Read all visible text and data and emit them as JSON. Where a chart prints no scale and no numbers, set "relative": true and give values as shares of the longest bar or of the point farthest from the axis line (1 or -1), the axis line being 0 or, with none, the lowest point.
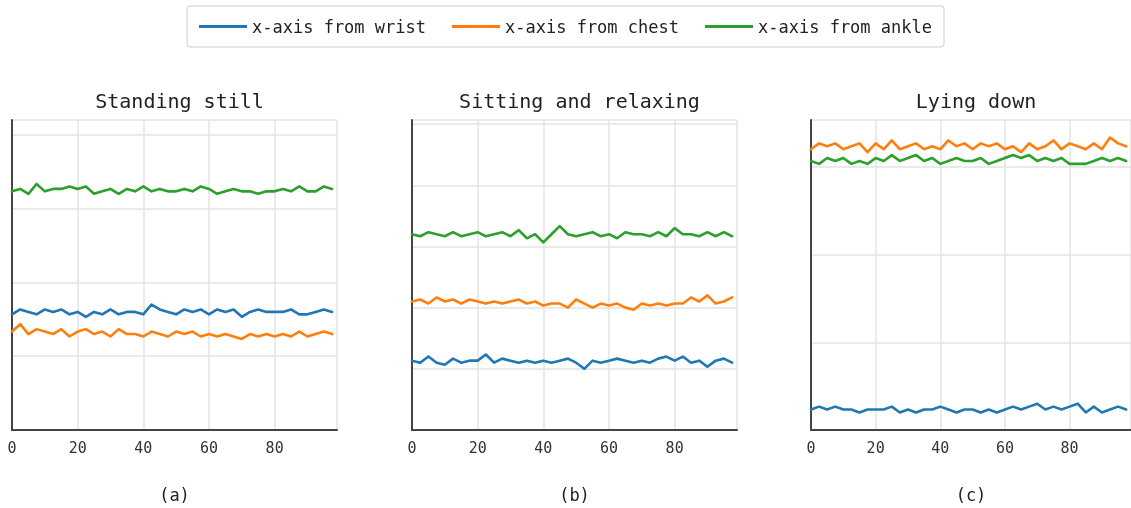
{
  "chart_data": [
    {
      "type": "line",
      "title": "Standing still",
      "xlabel": "(a)",
      "relative": true,
      "grid": true,
      "legend": "top",
      "tick_labels": "x",
      "xlim": [
        0,
        99
      ],
      "xticks": [
        0,
        20,
        40,
        60,
        80
      ],
      "x": [
        0,
        2.5,
        5,
        7.5,
        10,
        12.5,
        15,
        17.5,
        20,
        22.5,
        25,
        27.5,
        30,
        32.5,
        35,
        37.5,
        40,
        42.5,
        45,
        47.5,
        50,
        52.5,
        55,
        57.5,
        60,
        62.5,
        65,
        67.5,
        70,
        72.5,
        75,
        77.5,
        80,
        82.5,
        85,
        87.5,
        90,
        92.5,
        95,
        97.5
      ],
      "series": [
        {
          "name": "x-axis from wrist",
          "color": "#1f77b4",
          "values": [
            0.47,
            0.49,
            0.48,
            0.47,
            0.49,
            0.48,
            0.49,
            0.47,
            0.48,
            0.46,
            0.48,
            0.47,
            0.49,
            0.47,
            0.48,
            0.48,
            0.47,
            0.51,
            0.49,
            0.48,
            0.47,
            0.49,
            0.48,
            0.49,
            0.47,
            0.49,
            0.48,
            0.49,
            0.46,
            0.48,
            0.49,
            0.48,
            0.48,
            0.48,
            0.49,
            0.47,
            0.47,
            0.48,
            0.49,
            0.48
          ]
        },
        {
          "name": "x-axis from chest",
          "color": "#ff7f0e",
          "values": [
            0.4,
            0.43,
            0.39,
            0.41,
            0.4,
            0.39,
            0.41,
            0.38,
            0.4,
            0.41,
            0.39,
            0.4,
            0.38,
            0.41,
            0.39,
            0.39,
            0.38,
            0.4,
            0.39,
            0.38,
            0.4,
            0.39,
            0.4,
            0.38,
            0.39,
            0.38,
            0.39,
            0.38,
            0.37,
            0.39,
            0.38,
            0.39,
            0.38,
            0.39,
            0.38,
            0.4,
            0.38,
            0.39,
            0.4,
            0.39
          ]
        },
        {
          "name": "x-axis from ankle",
          "color": "#2ca02c",
          "values": [
            0.97,
            0.98,
            0.96,
            1.0,
            0.97,
            0.98,
            0.98,
            0.99,
            0.98,
            0.99,
            0.96,
            0.97,
            0.98,
            0.96,
            0.98,
            0.97,
            0.99,
            0.97,
            0.98,
            0.97,
            0.97,
            0.98,
            0.97,
            0.99,
            0.98,
            0.96,
            0.97,
            0.98,
            0.97,
            0.97,
            0.96,
            0.97,
            0.97,
            0.98,
            0.97,
            0.99,
            0.97,
            0.97,
            0.99,
            0.98
          ]
        }
      ]
    },
    {
      "type": "line",
      "title": "Sitting and relaxing",
      "xlabel": "(b)",
      "relative": true,
      "grid": true,
      "tick_labels": "x",
      "xlim": [
        0,
        99
      ],
      "xticks": [
        0,
        20,
        40,
        60,
        80
      ],
      "x": [
        0,
        2.5,
        5,
        7.5,
        10,
        12.5,
        15,
        17.5,
        20,
        22.5,
        25,
        27.5,
        30,
        32.5,
        35,
        37.5,
        40,
        42.5,
        45,
        47.5,
        50,
        52.5,
        55,
        57.5,
        60,
        62.5,
        65,
        67.5,
        70,
        72.5,
        75,
        77.5,
        80,
        82.5,
        85,
        87.5,
        90,
        92.5,
        95,
        97.5
      ],
      "series": [
        {
          "color": "#1f77b4",
          "values": [
            0.34,
            0.33,
            0.36,
            0.33,
            0.32,
            0.35,
            0.33,
            0.34,
            0.34,
            0.37,
            0.33,
            0.35,
            0.34,
            0.33,
            0.34,
            0.33,
            0.34,
            0.33,
            0.34,
            0.35,
            0.33,
            0.3,
            0.34,
            0.33,
            0.34,
            0.35,
            0.34,
            0.33,
            0.34,
            0.33,
            0.35,
            0.36,
            0.34,
            0.36,
            0.33,
            0.34,
            0.31,
            0.34,
            0.35,
            0.33
          ]
        },
        {
          "color": "#ff7f0e",
          "values": [
            0.63,
            0.64,
            0.62,
            0.65,
            0.63,
            0.64,
            0.62,
            0.64,
            0.63,
            0.62,
            0.63,
            0.62,
            0.63,
            0.64,
            0.62,
            0.63,
            0.61,
            0.62,
            0.62,
            0.6,
            0.64,
            0.62,
            0.6,
            0.62,
            0.61,
            0.62,
            0.6,
            0.59,
            0.62,
            0.61,
            0.62,
            0.61,
            0.62,
            0.62,
            0.65,
            0.63,
            0.66,
            0.62,
            0.63,
            0.65
          ]
        },
        {
          "color": "#2ca02c",
          "values": [
            0.96,
            0.95,
            0.97,
            0.96,
            0.95,
            0.97,
            0.95,
            0.96,
            0.97,
            0.95,
            0.96,
            0.97,
            0.95,
            0.98,
            0.94,
            0.96,
            0.92,
            0.96,
            1.0,
            0.96,
            0.95,
            0.96,
            0.97,
            0.95,
            0.96,
            0.94,
            0.97,
            0.96,
            0.96,
            0.95,
            0.97,
            0.95,
            0.99,
            0.96,
            0.96,
            0.95,
            0.97,
            0.95,
            0.97,
            0.95
          ]
        }
      ]
    },
    {
      "type": "line",
      "title": "Lying down",
      "xlabel": "(c)",
      "relative": true,
      "grid": true,
      "tick_labels": "x",
      "xlim": [
        0,
        99
      ],
      "xticks": [
        0,
        20,
        40,
        60,
        80
      ],
      "x": [
        0,
        2.5,
        5,
        7.5,
        10,
        12.5,
        15,
        17.5,
        20,
        22.5,
        25,
        27.5,
        30,
        32.5,
        35,
        37.5,
        40,
        42.5,
        45,
        47.5,
        50,
        52.5,
        55,
        57.5,
        60,
        62.5,
        65,
        67.5,
        70,
        72.5,
        75,
        77.5,
        80,
        82.5,
        85,
        87.5,
        90,
        92.5,
        95,
        97.5
      ],
      "series": [
        {
          "color": "#1f77b4",
          "values": [
            0.07,
            0.08,
            0.07,
            0.08,
            0.07,
            0.07,
            0.06,
            0.07,
            0.07,
            0.07,
            0.08,
            0.06,
            0.07,
            0.06,
            0.07,
            0.07,
            0.08,
            0.07,
            0.06,
            0.07,
            0.07,
            0.06,
            0.07,
            0.06,
            0.07,
            0.08,
            0.07,
            0.08,
            0.09,
            0.07,
            0.08,
            0.07,
            0.08,
            0.09,
            0.06,
            0.08,
            0.06,
            0.07,
            0.08,
            0.07
          ]
        },
        {
          "color": "#ff7f0e",
          "values": [
            0.96,
            0.98,
            0.97,
            0.98,
            0.96,
            0.97,
            0.98,
            0.95,
            0.98,
            0.96,
            0.99,
            0.96,
            0.97,
            0.98,
            0.96,
            0.97,
            0.96,
            0.99,
            0.97,
            0.98,
            0.96,
            0.98,
            0.97,
            0.98,
            0.96,
            0.97,
            0.95,
            0.98,
            0.96,
            0.97,
            0.99,
            0.96,
            0.98,
            0.97,
            0.96,
            0.98,
            0.96,
            1.0,
            0.98,
            0.97
          ]
        },
        {
          "color": "#2ca02c",
          "values": [
            0.92,
            0.91,
            0.93,
            0.92,
            0.93,
            0.91,
            0.92,
            0.91,
            0.93,
            0.92,
            0.94,
            0.92,
            0.93,
            0.94,
            0.92,
            0.93,
            0.91,
            0.92,
            0.93,
            0.92,
            0.92,
            0.93,
            0.91,
            0.92,
            0.93,
            0.94,
            0.93,
            0.94,
            0.92,
            0.93,
            0.92,
            0.93,
            0.91,
            0.91,
            0.91,
            0.92,
            0.93,
            0.92,
            0.93,
            0.92
          ]
        }
      ]
    }
  ]
}
